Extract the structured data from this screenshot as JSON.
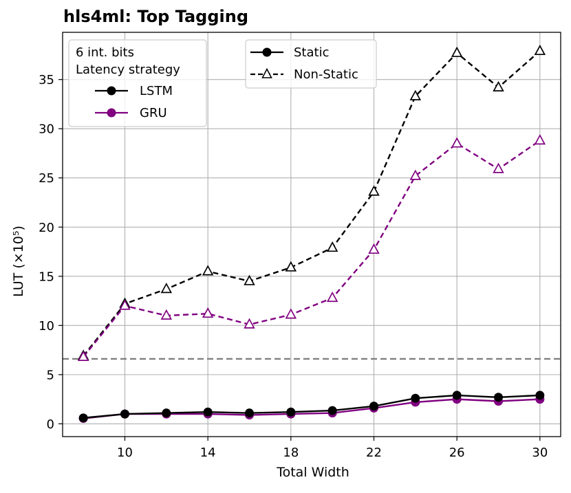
{
  "chart_data": {
    "type": "line",
    "title": "hls4ml: Top Tagging",
    "xlabel": "Total Width",
    "ylabel": "LUT (×10⁵)",
    "x": [
      8,
      10,
      12,
      14,
      16,
      18,
      20,
      22,
      24,
      26,
      28,
      30
    ],
    "xticks": [
      10,
      14,
      18,
      22,
      26,
      30
    ],
    "yticks": [
      0,
      5,
      10,
      15,
      20,
      25,
      30,
      35
    ],
    "xlim": [
      7,
      31
    ],
    "ylim": [
      -1.3,
      39.8
    ],
    "grid": true,
    "reference_line": {
      "y": 6.6,
      "style": "dashed",
      "color": "#808080"
    },
    "series": [
      {
        "name": "LSTM Static",
        "model": "LSTM",
        "mode": "Static",
        "color": "#000000",
        "values": [
          0.6,
          1.0,
          1.1,
          1.2,
          1.1,
          1.2,
          1.35,
          1.8,
          2.6,
          2.9,
          2.7,
          2.9
        ]
      },
      {
        "name": "GRU Static",
        "model": "GRU",
        "mode": "Static",
        "color": "#800080",
        "values": [
          0.55,
          1.0,
          1.0,
          1.0,
          0.9,
          1.0,
          1.1,
          1.6,
          2.2,
          2.5,
          2.3,
          2.5
        ]
      },
      {
        "name": "LSTM Non-Static",
        "model": "LSTM",
        "mode": "Non-Static",
        "color": "#000000",
        "values": [
          6.9,
          12.2,
          13.7,
          15.5,
          14.5,
          15.9,
          17.9,
          23.6,
          33.3,
          37.7,
          34.2,
          37.9
        ]
      },
      {
        "name": "GRU Non-Static",
        "model": "GRU",
        "mode": "Non-Static",
        "color": "#800080",
        "values": [
          6.8,
          12.0,
          11.0,
          11.2,
          10.1,
          11.1,
          12.8,
          17.7,
          25.2,
          28.5,
          25.9,
          28.8
        ]
      }
    ],
    "legend_left": {
      "placement": "upper-left",
      "title_line1": "6 int. bits",
      "title_line2": "Latency strategy",
      "entries": [
        {
          "label": "LSTM",
          "color": "#000000"
        },
        {
          "label": "GRU",
          "color": "#800080"
        }
      ]
    },
    "legend_right": {
      "placement": "upper-center",
      "entries": [
        {
          "label": "Static",
          "style": "solid",
          "marker": "circle"
        },
        {
          "label": "Non-Static",
          "style": "dashed",
          "marker": "triangle"
        }
      ]
    }
  }
}
